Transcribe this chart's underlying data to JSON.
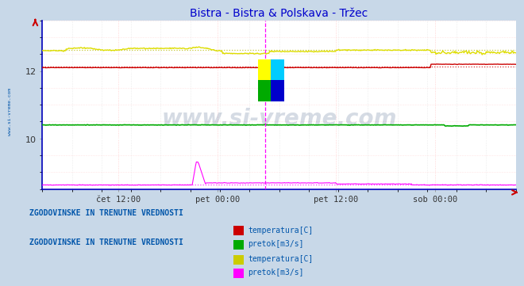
{
  "title": "Bistra - Bistra & Polskava - Tržec",
  "title_color": "#0000cc",
  "plot_bg_color": "#ffffff",
  "outer_bg_color": "#c8d8e8",
  "grid_color": "#dddddd",
  "x_tick_labels": [
    "čet 12:00",
    "pet 00:00",
    "pet 12:00",
    "sob 00:00"
  ],
  "x_tick_positions": [
    0.16,
    0.37,
    0.62,
    0.83
  ],
  "ylim": [
    8.5,
    13.5
  ],
  "yticks": [
    10,
    12
  ],
  "n_points": 576,
  "watermark": "www.si-vreme.com",
  "watermark_color": "#1a3a6a",
  "watermark_alpha": 0.18,
  "vline_pos": 0.47,
  "legend1_title": "ZGODOVINSKE IN TRENUTNE VREDNOSTI",
  "legend2_title": "ZGODOVINSKE IN TRENUTNE VREDNOSTI",
  "legend1_color1": "#cc0000",
  "legend1_label1": "temperatura[C]",
  "legend1_color2": "#00aa00",
  "legend1_label2": "pretok[m3/s]",
  "legend2_color1": "#cccc00",
  "legend2_label1": "temperatura[C]",
  "legend2_color2": "#ff00ff",
  "legend2_label2": "pretok[m3/s]",
  "legend_text_color": "#0055aa",
  "left_label": "www.si-vreme.com",
  "left_label_color": "#0055aa",
  "spine_color": "#0000bb",
  "axis_arrow_color": "#cc0000"
}
